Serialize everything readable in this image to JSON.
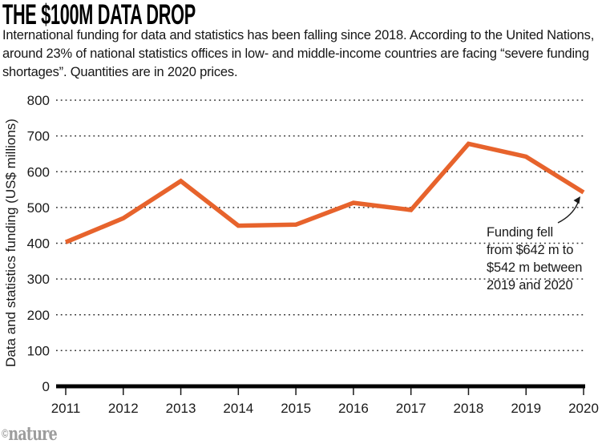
{
  "header": {
    "title": "THE $100M DATA DROP",
    "subtitle": "International funding for data and statistics has been falling since 2018. According to the United Nations, around 23% of national statistics offices in low- and middle-income countries are facing “severe funding shortages”. Quantities are in 2020 prices."
  },
  "chart_data": {
    "type": "line",
    "title": "THE $100M DATA DROP",
    "x": [
      2011,
      2012,
      2013,
      2014,
      2015,
      2016,
      2017,
      2018,
      2019,
      2020
    ],
    "series": [
      {
        "name": "Data and statistics funding",
        "values": [
          403,
          470,
          574,
          449,
          452,
          513,
          493,
          678,
          642,
          542
        ]
      }
    ],
    "xlabel": "",
    "ylabel": "Data and statistics funding (US$ millions)",
    "ylim": [
      0,
      800
    ],
    "ytick_step": 100,
    "grid": "horizontal-dotted",
    "legend_position": "none",
    "line_color": "#e7632c",
    "annotation": {
      "text": "Funding fell\nfrom $642 m to\n$542 m between\n2019 and 2020",
      "points_to": "2020 data point",
      "values_referenced": [
        642,
        542
      ]
    }
  },
  "footer": {
    "copyright": "©",
    "brand": "nature"
  }
}
